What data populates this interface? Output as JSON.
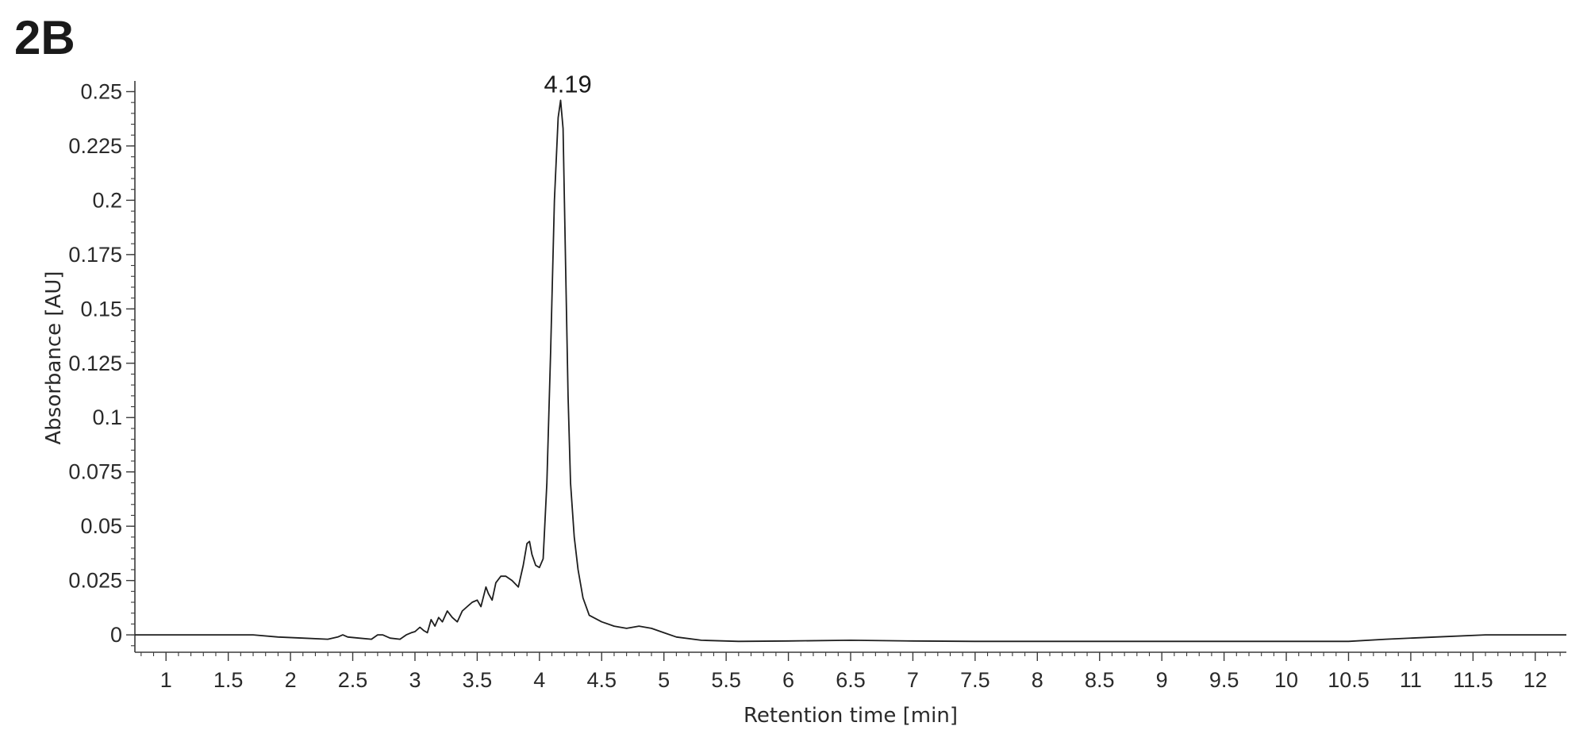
{
  "figure": {
    "panel_label": "2B"
  },
  "chart_data": {
    "type": "line",
    "title": "",
    "xlabel": "Retention time [min]",
    "ylabel": "Absorbance [AU]",
    "xlim": [
      0.75,
      12.25
    ],
    "ylim": [
      -0.008,
      0.252
    ],
    "x_ticks": [
      1,
      1.5,
      2,
      2.5,
      3,
      3.5,
      4,
      4.5,
      5,
      5.5,
      6,
      6.5,
      7,
      7.5,
      8,
      8.5,
      9,
      9.5,
      10,
      10.5,
      11,
      11.5,
      12
    ],
    "x_tick_labels": [
      "1",
      "1.5",
      "2",
      "2.5",
      "3",
      "3.5",
      "4",
      "4.5",
      "5",
      "5.5",
      "6",
      "6.5",
      "7",
      "7.5",
      "8",
      "8.5",
      "9",
      "9.5",
      "10",
      "10.5",
      "11",
      "11.5",
      "12"
    ],
    "y_ticks": [
      0,
      0.025,
      0.05,
      0.075,
      0.1,
      0.125,
      0.15,
      0.175,
      0.2,
      0.225,
      0.25
    ],
    "y_tick_labels": [
      "0",
      "0.025",
      "0.05",
      "0.075",
      "0.1",
      "0.125",
      "0.15",
      "0.175",
      "0.2",
      "0.225",
      "0.25"
    ],
    "grid": false,
    "annotations": [
      {
        "text": "4.19",
        "x": 4.19,
        "y": 0.246
      }
    ],
    "series": [
      {
        "x": [
          0.75,
          1.0,
          1.2,
          1.5,
          1.7,
          1.9,
          2.1,
          2.3,
          2.38,
          2.42,
          2.46,
          2.55,
          2.65,
          2.7,
          2.74,
          2.8,
          2.88,
          2.93,
          2.97,
          3.0,
          3.04,
          3.07,
          3.1,
          3.13,
          3.16,
          3.19,
          3.22,
          3.26,
          3.3,
          3.34,
          3.38,
          3.42,
          3.46,
          3.5,
          3.53,
          3.57,
          3.59,
          3.62,
          3.65,
          3.69,
          3.73,
          3.78,
          3.83,
          3.87,
          3.9,
          3.92,
          3.94,
          3.97,
          4.0,
          4.03,
          4.06,
          4.09,
          4.12,
          4.15,
          4.17,
          4.19,
          4.21,
          4.23,
          4.25,
          4.28,
          4.31,
          4.35,
          4.4,
          4.5,
          4.6,
          4.7,
          4.8,
          4.9,
          5.0,
          5.1,
          5.3,
          5.6,
          6.0,
          6.5,
          7.0,
          7.5,
          8.0,
          9.0,
          10.0,
          10.5,
          10.8,
          11.2,
          11.6,
          12.0,
          12.25
        ],
        "y": [
          0.0,
          0.0,
          0.0,
          0.0,
          0.0,
          -0.001,
          -0.0015,
          -0.002,
          -0.001,
          0.0,
          -0.001,
          -0.0015,
          -0.002,
          0.0,
          0.0,
          -0.0015,
          -0.002,
          0.0,
          0.001,
          0.0015,
          0.0035,
          0.002,
          0.001,
          0.007,
          0.004,
          0.008,
          0.006,
          0.011,
          0.008,
          0.006,
          0.011,
          0.013,
          0.015,
          0.016,
          0.013,
          0.022,
          0.019,
          0.016,
          0.024,
          0.027,
          0.027,
          0.025,
          0.022,
          0.032,
          0.042,
          0.043,
          0.037,
          0.032,
          0.031,
          0.035,
          0.07,
          0.13,
          0.2,
          0.238,
          0.246,
          0.233,
          0.17,
          0.11,
          0.07,
          0.045,
          0.03,
          0.017,
          0.009,
          0.006,
          0.004,
          0.003,
          0.004,
          0.003,
          0.001,
          -0.001,
          -0.0025,
          -0.003,
          -0.0028,
          -0.0025,
          -0.0028,
          -0.003,
          -0.003,
          -0.003,
          -0.003,
          -0.003,
          -0.002,
          -0.001,
          0.0,
          0.0,
          0.0
        ]
      }
    ]
  }
}
